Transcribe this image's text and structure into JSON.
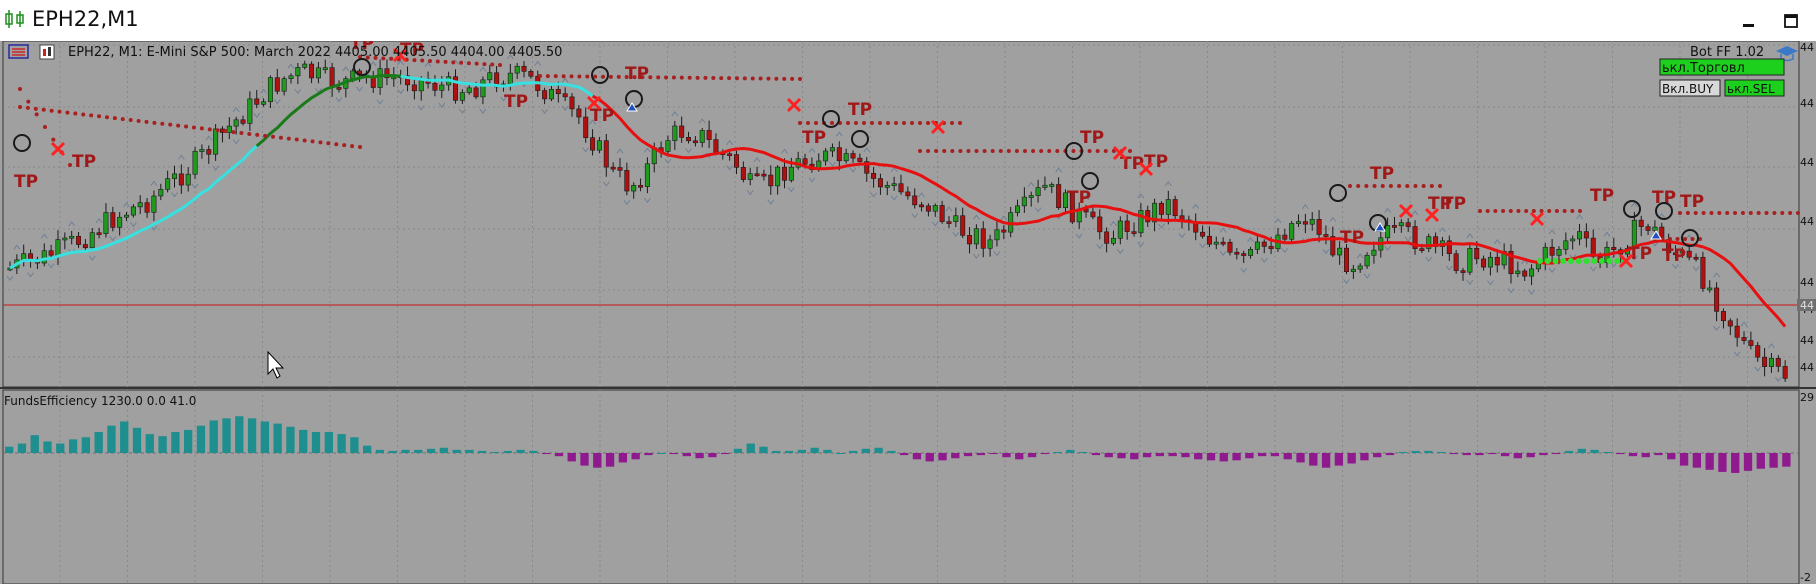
{
  "window": {
    "title": "EPH22,M1"
  },
  "main_panel": {
    "header_text": "EPH22, M1:  E-Mini S&P 500: March 2022  4405.00 4405.50 4404.00 4405.50",
    "price_axis_labels": [
      "44",
      "44",
      "44",
      "44",
      "44",
      "44",
      "44",
      "44"
    ],
    "current_price_label": "44",
    "trade_marker_label": "TP"
  },
  "bot_panel": {
    "title": "Bot FF 1.02",
    "trading_button": "ькл.Торговл",
    "buy_button": "Вкл.BUY",
    "sell_button": "ькл.SEL"
  },
  "indicator_panel": {
    "header_text": "FundsEfficiency 1230.0 0.0 41.0",
    "axis_top": "29",
    "axis_bottom": "-2"
  },
  "colors": {
    "chart_bg": "#a0a0a0",
    "bull_candle": "#1e9a1e",
    "bear_candle": "#b01010",
    "ma_green": "#1a7a1a",
    "ma_red": "#e61010",
    "ma_cyan": "#38e0e0",
    "tp_dots": "#a82020",
    "tp_text": "#a01818",
    "cross": "#ff2020",
    "hist_pos": "#1e8e8e",
    "hist_neg": "#8e1a8e",
    "hline": "#c03030"
  },
  "chart_data": [
    {
      "type": "candlestick",
      "instrument": "EPH22",
      "timeframe": "M1",
      "description": "E-Mini S&P 500: March 2022",
      "last_bar": {
        "open": 4405.0,
        "high": 4405.5,
        "low": 4404.0,
        "close": 4405.5
      },
      "price_trend": [
        0.74,
        0.72,
        0.7,
        0.67,
        0.64,
        0.6,
        0.56,
        0.53,
        0.5,
        0.45,
        0.4,
        0.35,
        0.28,
        0.22,
        0.16,
        0.1,
        0.06,
        0.04,
        0.06,
        0.08,
        0.07,
        0.06,
        0.06,
        0.06,
        0.07,
        0.09,
        0.1,
        0.09,
        0.06,
        0.05,
        0.06,
        0.1,
        0.16,
        0.2,
        0.3,
        0.4,
        0.45,
        0.38,
        0.28,
        0.25,
        0.26,
        0.32,
        0.36,
        0.45,
        0.44,
        0.38,
        0.36,
        0.34,
        0.35,
        0.38,
        0.42,
        0.45,
        0.48,
        0.5,
        0.55,
        0.6,
        0.62,
        0.65,
        0.58,
        0.52,
        0.45,
        0.5,
        0.55,
        0.6,
        0.62,
        0.58,
        0.55,
        0.5,
        0.55,
        0.6,
        0.65,
        0.72,
        0.7,
        0.65,
        0.6,
        0.55,
        0.6,
        0.7,
        0.72,
        0.65,
        0.62,
        0.62,
        0.65,
        0.68,
        0.72,
        0.7,
        0.7,
        0.72,
        0.75,
        0.7,
        0.65,
        0.62,
        0.72,
        0.68,
        0.62,
        0.58,
        0.65,
        0.7,
        0.75,
        0.85,
        0.95,
        1.05,
        1.1,
        1.12
      ],
      "funds_efficiency": [
        6,
        9,
        17,
        11,
        9,
        13,
        15,
        20,
        26,
        30,
        24,
        18,
        16,
        20,
        22,
        26,
        31,
        33,
        35,
        33,
        30,
        28,
        25,
        22,
        20,
        20,
        18,
        15,
        7,
        3,
        2,
        3,
        3,
        4,
        5,
        3,
        3,
        2,
        1,
        2,
        3,
        2,
        -1,
        -3,
        -8,
        -12,
        -14,
        -13,
        -9,
        -6,
        -2,
        0,
        -1,
        -3,
        -5,
        -4,
        -1,
        4,
        9,
        6,
        2,
        2,
        3,
        5,
        3,
        0,
        2,
        4,
        5,
        2,
        -2,
        -6,
        -8,
        -7,
        -5,
        -3,
        -2,
        -1,
        -4,
        -6,
        -4,
        -1,
        1,
        3,
        1,
        -2,
        -4,
        -5,
        -6,
        -4,
        -3,
        -3,
        -4,
        -6,
        -7,
        -8,
        -7,
        -5,
        -3,
        -3,
        -6,
        -9,
        -12,
        -14,
        -12,
        -10,
        -7,
        -4,
        -2,
        1,
        2,
        2,
        1,
        -1,
        -2,
        -2,
        -1,
        -3,
        -5,
        -4,
        -2,
        -1,
        2,
        4,
        3,
        1,
        -1,
        -3,
        -4,
        -2,
        -6,
        -12,
        -14,
        -16,
        -18,
        -19,
        -17,
        -15,
        -14,
        -13
      ]
    }
  ]
}
